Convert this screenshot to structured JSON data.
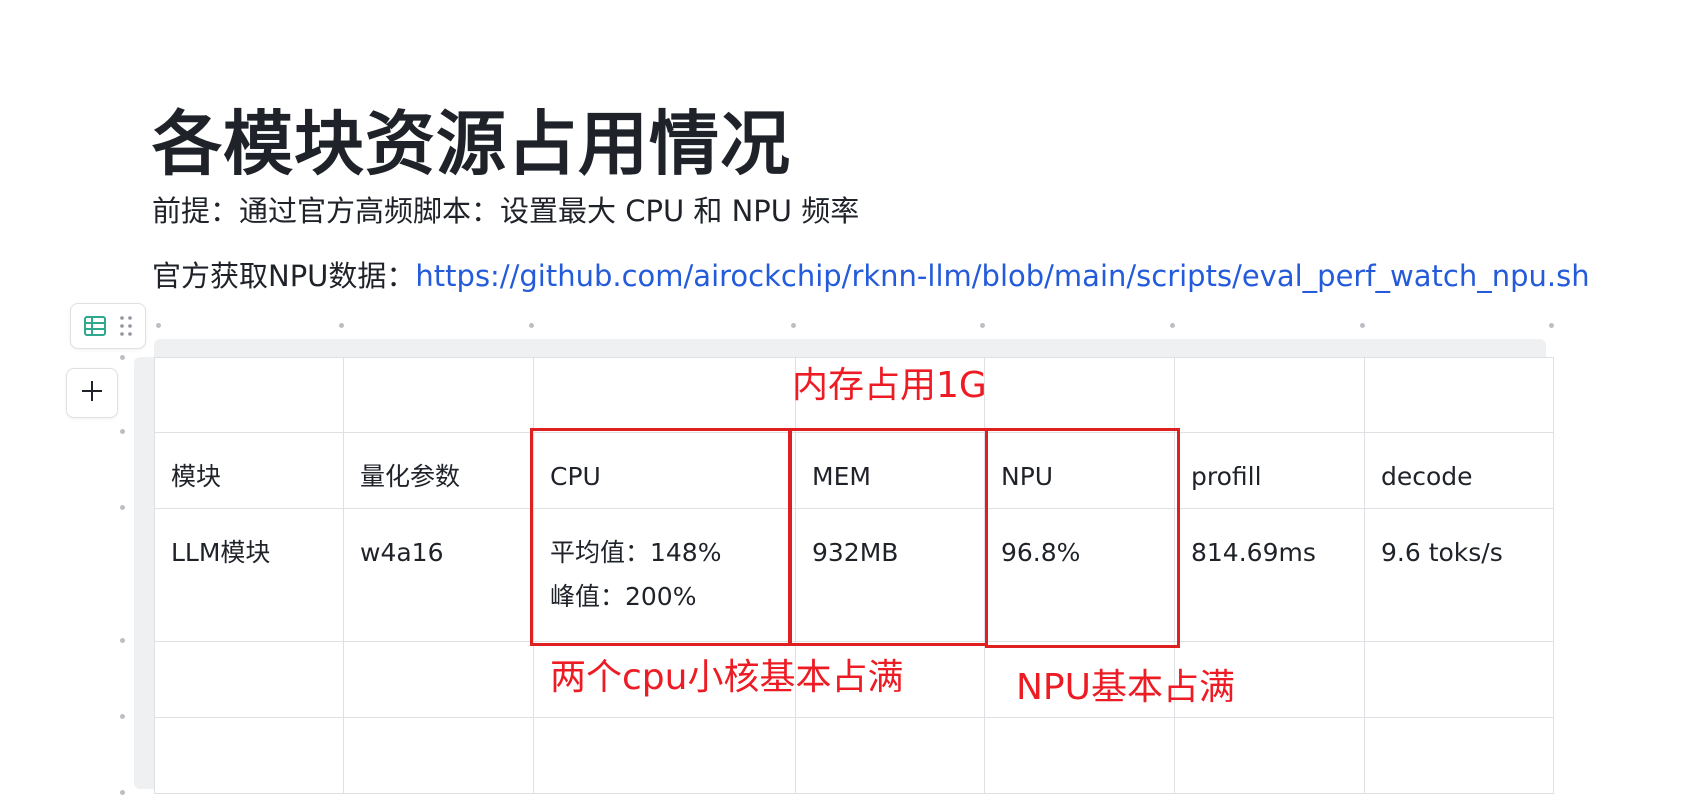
{
  "document": {
    "title": "各模块资源占用情况",
    "paragraph1": "前提：通过官方高频脚本：设置最大 CPU 和 NPU 频率",
    "paragraph2_prefix": "官方获取NPU数据：",
    "paragraph2_link": "https://github.com/airockchip/rknn-llm/blob/main/scripts/eval_perf_watch_npu.sh"
  },
  "table": {
    "headers": [
      "模块",
      "量化参数",
      "CPU",
      "MEM",
      "NPU",
      "profill",
      "decode"
    ],
    "row": {
      "module": "LLM模块",
      "quant": "w4a16",
      "cpu_avg": "平均值：148%",
      "cpu_peak": "峰值：200%",
      "mem": "932MB",
      "npu": "96.8%",
      "profill": "814.69ms",
      "decode": "9.6 toks/s"
    }
  },
  "annotations": {
    "mem_note": "内存占用1G",
    "cpu_note": "两个cpu小核基本占满",
    "npu_note": "NPU基本占满",
    "color": "#e02020"
  },
  "icons": {
    "table_icon": "table-icon",
    "drag_icon": "drag-handle-icon",
    "add_icon": "plus-icon"
  },
  "colors": {
    "link": "#245bdb",
    "text": "#1f2329",
    "icon_teal": "#2ea88e"
  }
}
